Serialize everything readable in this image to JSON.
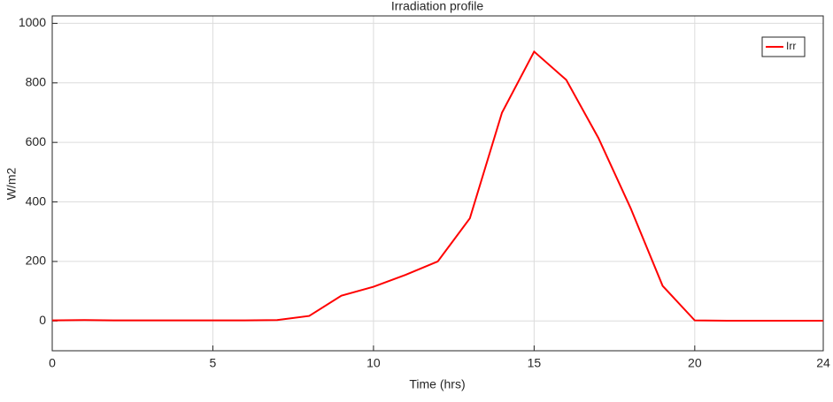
{
  "chart_data": {
    "type": "line",
    "title": "Irradiation profile",
    "x_label": "Time (hrs)",
    "y_label": "W/m2",
    "x": [
      0,
      1,
      2,
      3,
      4,
      5,
      6,
      7,
      8,
      9,
      10,
      11,
      12,
      13,
      14,
      15,
      16,
      17,
      18,
      19,
      20,
      21,
      22,
      23,
      24
    ],
    "series": [
      {
        "name": "Irr",
        "color": "#ff0000",
        "values": [
          2,
          3,
          2,
          2,
          2,
          2,
          2,
          3,
          17,
          85,
          115,
          155,
          200,
          345,
          700,
          905,
          810,
          615,
          380,
          118,
          2,
          1,
          1,
          1,
          1
        ]
      }
    ],
    "xlim": [
      0,
      24
    ],
    "xticks": [
      0,
      5,
      10,
      15,
      20,
      24
    ],
    "ylim": [
      -100,
      1025
    ],
    "yticks": [
      0,
      200,
      400,
      600,
      800,
      1000
    ],
    "grid": true,
    "legend": "top-right"
  }
}
